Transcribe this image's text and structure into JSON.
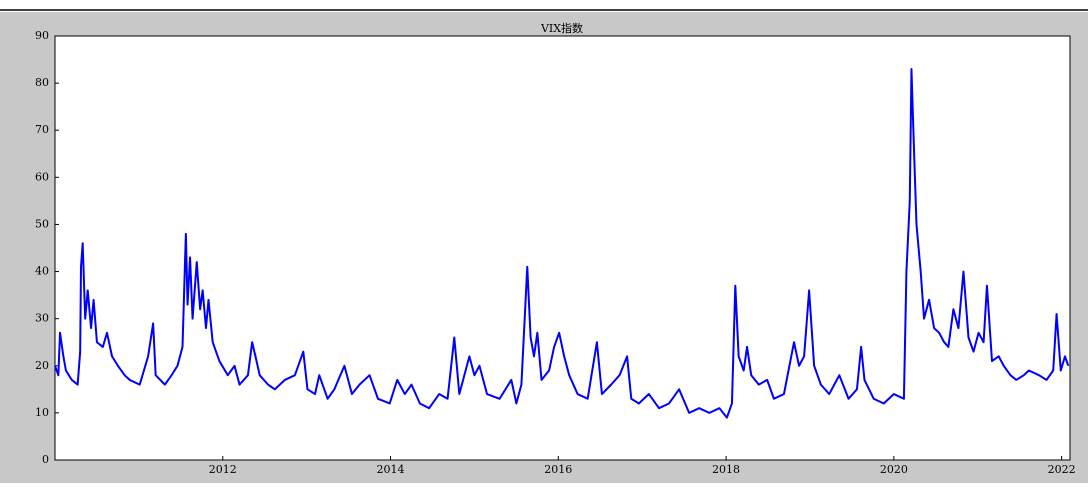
{
  "chart_data": {
    "type": "line",
    "title": "VIX指数",
    "x": [
      2010.0,
      2010.04,
      2010.06,
      2010.1,
      2010.13,
      2010.2,
      2010.27,
      2010.3,
      2010.31,
      2010.33,
      2010.36,
      2010.39,
      2010.43,
      2010.46,
      2010.5,
      2010.57,
      2010.62,
      2010.68,
      2010.75,
      2010.83,
      2010.89,
      2011.01,
      2011.11,
      2011.17,
      2011.2,
      2011.31,
      2011.39,
      2011.46,
      2011.52,
      2011.56,
      2011.58,
      2011.61,
      2011.64,
      2011.69,
      2011.73,
      2011.76,
      2011.8,
      2011.83,
      2011.88,
      2011.96,
      2012.06,
      2012.14,
      2012.2,
      2012.3,
      2012.35,
      2012.39,
      2012.44,
      2012.54,
      2012.62,
      2012.74,
      2012.86,
      2012.96,
      2013.01,
      2013.1,
      2013.15,
      2013.25,
      2013.33,
      2013.45,
      2013.54,
      2013.63,
      2013.75,
      2013.85,
      2013.99,
      2014.08,
      2014.17,
      2014.25,
      2014.35,
      2014.46,
      2014.58,
      2014.68,
      2014.76,
      2014.82,
      2014.94,
      2015.0,
      2015.06,
      2015.15,
      2015.3,
      2015.44,
      2015.5,
      2015.56,
      2015.63,
      2015.67,
      2015.71,
      2015.75,
      2015.8,
      2015.89,
      2015.95,
      2016.01,
      2016.07,
      2016.13,
      2016.23,
      2016.35,
      2016.46,
      2016.52,
      2016.63,
      2016.73,
      2016.82,
      2016.87,
      2016.96,
      2017.08,
      2017.2,
      2017.32,
      2017.44,
      2017.56,
      2017.68,
      2017.8,
      2017.92,
      2018.01,
      2018.07,
      2018.11,
      2018.15,
      2018.21,
      2018.25,
      2018.3,
      2018.39,
      2018.49,
      2018.57,
      2018.69,
      2018.81,
      2018.87,
      2018.93,
      2018.99,
      2019.05,
      2019.13,
      2019.23,
      2019.35,
      2019.46,
      2019.56,
      2019.61,
      2019.65,
      2019.76,
      2019.88,
      2020.0,
      2020.12,
      2020.15,
      2020.19,
      2020.21,
      2020.24,
      2020.27,
      2020.32,
      2020.36,
      2020.42,
      2020.48,
      2020.54,
      2020.6,
      2020.65,
      2020.71,
      2020.77,
      2020.83,
      2020.89,
      2020.95,
      2021.01,
      2021.07,
      2021.11,
      2021.17,
      2021.25,
      2021.31,
      2021.39,
      2021.46,
      2021.55,
      2021.61,
      2021.73,
      2021.82,
      2021.9,
      2021.94,
      2021.99,
      2022.04,
      2022.08
    ],
    "series": [
      {
        "name": "VIX",
        "color": "#0000ff",
        "values": [
          20,
          18,
          27,
          22,
          19,
          17,
          16,
          23,
          41,
          46,
          30,
          36,
          28,
          34,
          25,
          24,
          27,
          22,
          20,
          18,
          17,
          16,
          22,
          29,
          18,
          16,
          18,
          20,
          24,
          48,
          33,
          43,
          30,
          42,
          32,
          36,
          28,
          34,
          25,
          21,
          18,
          20,
          16,
          18,
          25,
          22,
          18,
          16,
          15,
          17,
          18,
          23,
          15,
          14,
          18,
          13,
          15,
          20,
          14,
          16,
          18,
          13,
          12,
          17,
          14,
          16,
          12,
          11,
          14,
          13,
          26,
          14,
          22,
          18,
          20,
          14,
          13,
          17,
          12,
          16,
          41,
          26,
          22,
          27,
          17,
          19,
          24,
          27,
          22,
          18,
          14,
          13,
          25,
          14,
          16,
          18,
          22,
          13,
          12,
          14,
          11,
          12,
          15,
          10,
          11,
          10,
          11,
          9,
          12,
          37,
          22,
          19,
          24,
          18,
          16,
          17,
          13,
          14,
          25,
          20,
          22,
          36,
          20,
          16,
          14,
          18,
          13,
          15,
          24,
          17,
          13,
          12,
          14,
          13,
          40,
          55,
          83,
          66,
          50,
          40,
          30,
          34,
          28,
          27,
          25,
          24,
          32,
          28,
          40,
          26,
          23,
          27,
          25,
          37,
          21,
          22,
          20,
          18,
          17,
          18,
          19,
          18,
          17,
          19,
          31,
          19,
          22,
          20
        ]
      }
    ],
    "xlim": [
      2010,
      2022.1
    ],
    "xticks": [
      2012,
      2014,
      2016,
      2018,
      2020,
      2022
    ],
    "ylim": [
      0,
      90
    ],
    "yticks": [
      0,
      10,
      20,
      30,
      40,
      50,
      60,
      70,
      80,
      90
    ]
  }
}
